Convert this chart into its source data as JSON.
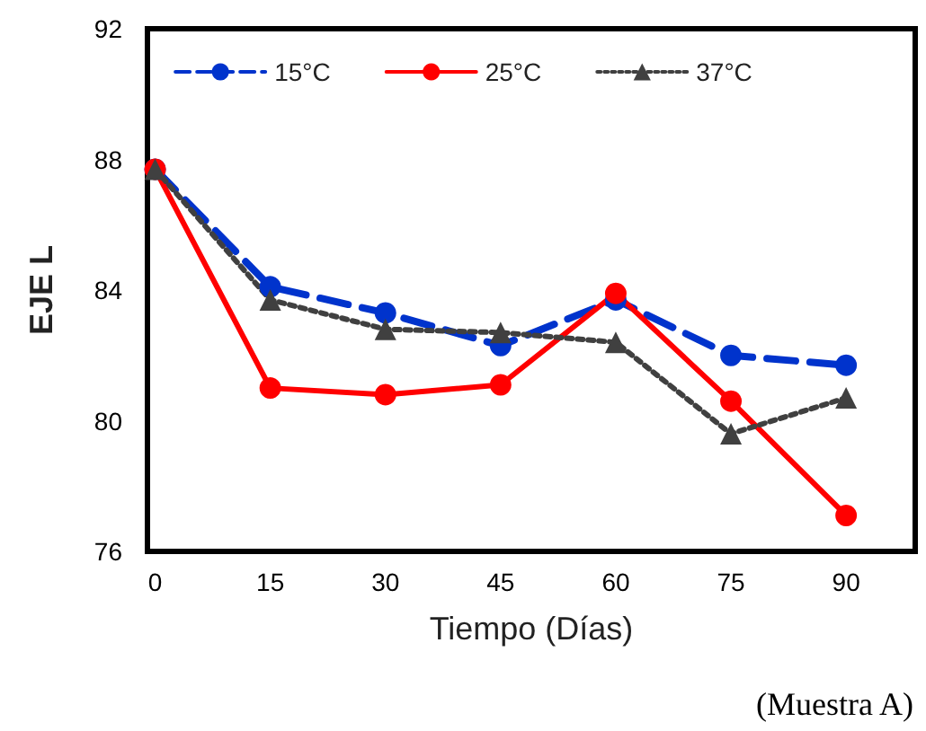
{
  "chart_data": {
    "type": "line",
    "xlabel": "Tiempo (Días)",
    "ylabel": "EJE L",
    "x": [
      0,
      15,
      30,
      45,
      60,
      75,
      90
    ],
    "series": [
      {
        "name": "15°C",
        "color": "#0033cc",
        "marker": "circle",
        "line_style": "dashed",
        "values": [
          87.7,
          84.1,
          83.3,
          82.3,
          83.7,
          82.0,
          81.7
        ]
      },
      {
        "name": "25°C",
        "color": "#ff0000",
        "marker": "circle",
        "line_style": "solid",
        "values": [
          87.7,
          81.0,
          80.8,
          81.1,
          83.9,
          80.6,
          77.1
        ]
      },
      {
        "name": "37°C",
        "color": "#404040",
        "marker": "triangle",
        "line_style": "dotted",
        "values": [
          87.7,
          83.7,
          82.8,
          82.7,
          82.4,
          79.6,
          80.7
        ]
      }
    ],
    "xlim": [
      -1,
      99
    ],
    "xticks": [
      0,
      15,
      30,
      45,
      60,
      75,
      90
    ],
    "ylim": [
      76,
      92
    ],
    "yticks": [
      76,
      80,
      84,
      88,
      92
    ],
    "grid": false,
    "legend": "top",
    "annotations": [
      "(Muestra A)"
    ]
  }
}
